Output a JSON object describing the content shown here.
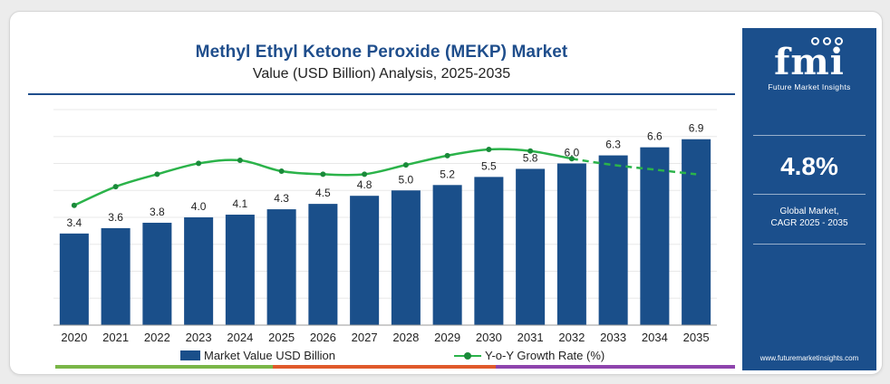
{
  "chart_data": {
    "type": "bar",
    "title": "Methyl Ethyl Ketone Peroxide (MEKP) Market",
    "subtitle": "Value (USD Billion) Analysis, 2025-2035",
    "categories": [
      "2020",
      "2021",
      "2022",
      "2023",
      "2024",
      "2025",
      "2026",
      "2027",
      "2028",
      "2029",
      "2030",
      "2031",
      "2032",
      "2033",
      "2034",
      "2035"
    ],
    "ylim": [
      0,
      8
    ],
    "grid": true,
    "legend_position": "bottom",
    "series": [
      {
        "name": "Market Value USD Billion",
        "kind": "bar",
        "color": "#1a4f8a",
        "values": [
          3.4,
          3.6,
          3.8,
          4.0,
          4.1,
          4.3,
          4.5,
          4.8,
          5.0,
          5.2,
          5.5,
          5.8,
          6.0,
          6.3,
          6.6,
          6.9
        ],
        "labels": [
          "3.4",
          "3.6",
          "3.8",
          "4.0",
          "4.1",
          "4.3",
          "4.5",
          "4.8",
          "5.0",
          "5.2",
          "5.5",
          "5.8",
          "6.0",
          "6.3",
          "6.6",
          "6.9"
        ]
      },
      {
        "name": "Y-o-Y Growth Rate (%)",
        "kind": "line",
        "color": "#2bb34a",
        "values": [
          2.0,
          3.2,
          4.0,
          4.7,
          4.9,
          4.2,
          4.0,
          4.0,
          4.6,
          5.2,
          5.6,
          5.5,
          5.0,
          4.6,
          4.3,
          4.0
        ]
      }
    ],
    "projected_from": "2032"
  },
  "side_panel": {
    "logo_text": "fmi",
    "logo_subtitle": "Future Market Insights",
    "cagr_value": "4.8%",
    "cagr_label_line1": "Global Market,",
    "cagr_label_line2": "CAGR 2025 - 2035",
    "website": "www.futuremarketinsights.com",
    "background_color": "#1b4f8c"
  },
  "bottom_bar_colors": [
    "#7ab648",
    "#e05a2b",
    "#8e44ad"
  ]
}
